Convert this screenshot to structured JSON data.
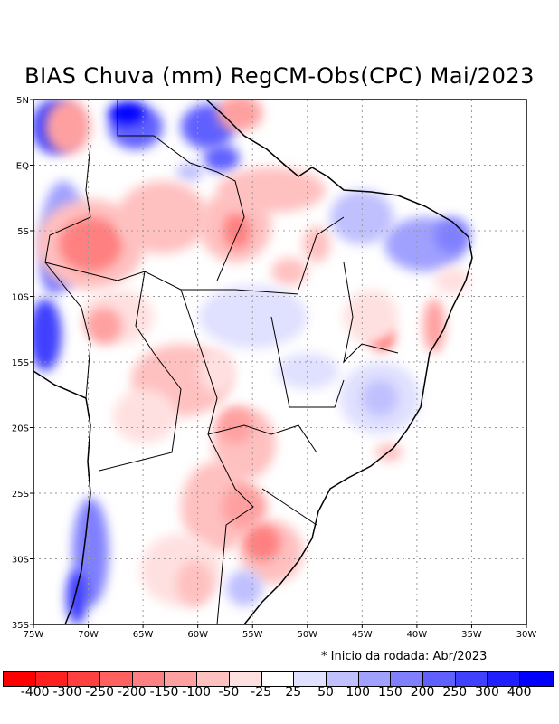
{
  "title": "BIAS Chuva (mm) RegCM-Obs(CPC) Mai/2023",
  "note": "* Inicio da rodada: Abr/2023",
  "map": {
    "lon_range": [
      -75,
      -30
    ],
    "lat_range": [
      -35,
      5
    ],
    "lat_labels": [
      "5N",
      "EQ",
      "5S",
      "10S",
      "15S",
      "20S",
      "25S",
      "30S",
      "35S"
    ],
    "lat_values": [
      5,
      0,
      -5,
      -10,
      -15,
      -20,
      -25,
      -30,
      -35
    ],
    "lon_labels": [
      "75W",
      "70W",
      "65W",
      "60W",
      "55W",
      "50W",
      "45W",
      "40W",
      "35W",
      "30W"
    ],
    "lon_values": [
      -75,
      -70,
      -65,
      -60,
      -55,
      -50,
      -45,
      -40,
      -35,
      -30
    ]
  },
  "colorbar": {
    "colors": [
      "#ff0000",
      "#ff2020",
      "#ff4040",
      "#ff6060",
      "#ff8080",
      "#ffa0a0",
      "#ffc0c0",
      "#ffe0e0",
      "#ffffff",
      "#e0e0ff",
      "#c0c0ff",
      "#a0a0ff",
      "#8080ff",
      "#6060ff",
      "#4040ff",
      "#2020ff",
      "#0000ff"
    ],
    "labels": [
      "-400",
      "-300",
      "-250",
      "-200",
      "-150",
      "-100",
      "-50",
      "-25",
      "25",
      "50",
      "100",
      "150",
      "200",
      "250",
      "300",
      "400"
    ]
  }
}
